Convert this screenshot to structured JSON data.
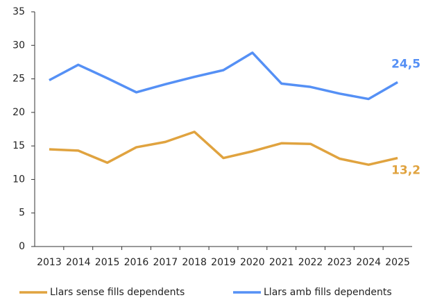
{
  "chart_data": {
    "type": "line",
    "categories": [
      "2013",
      "2014",
      "2015",
      "2016",
      "2017",
      "2018",
      "2019",
      "2020",
      "2021",
      "2022",
      "2023",
      "2024",
      "2025"
    ],
    "series": [
      {
        "name": "Llars sense fills dependents",
        "color": "#e0a33f",
        "values": [
          14.5,
          14.3,
          12.5,
          14.8,
          15.6,
          17.1,
          13.2,
          14.2,
          15.4,
          15.3,
          13.1,
          12.2,
          13.2
        ],
        "value_labels": [
          null,
          null,
          null,
          null,
          null,
          null,
          null,
          null,
          null,
          null,
          null,
          null,
          "13,2"
        ]
      },
      {
        "name": "Llars amb fills dependents",
        "color": "#5590f5",
        "values": [
          24.8,
          27.1,
          25.1,
          23.0,
          24.2,
          25.3,
          26.3,
          28.9,
          24.3,
          23.8,
          22.8,
          22.0,
          24.5
        ],
        "value_labels": [
          null,
          null,
          null,
          null,
          null,
          null,
          null,
          null,
          null,
          null,
          null,
          null,
          "24,5"
        ]
      }
    ],
    "ylim": [
      0,
      35
    ],
    "yticks": [
      0,
      5,
      10,
      15,
      20,
      25,
      30,
      35
    ],
    "grid": false,
    "legend": "bottom"
  }
}
